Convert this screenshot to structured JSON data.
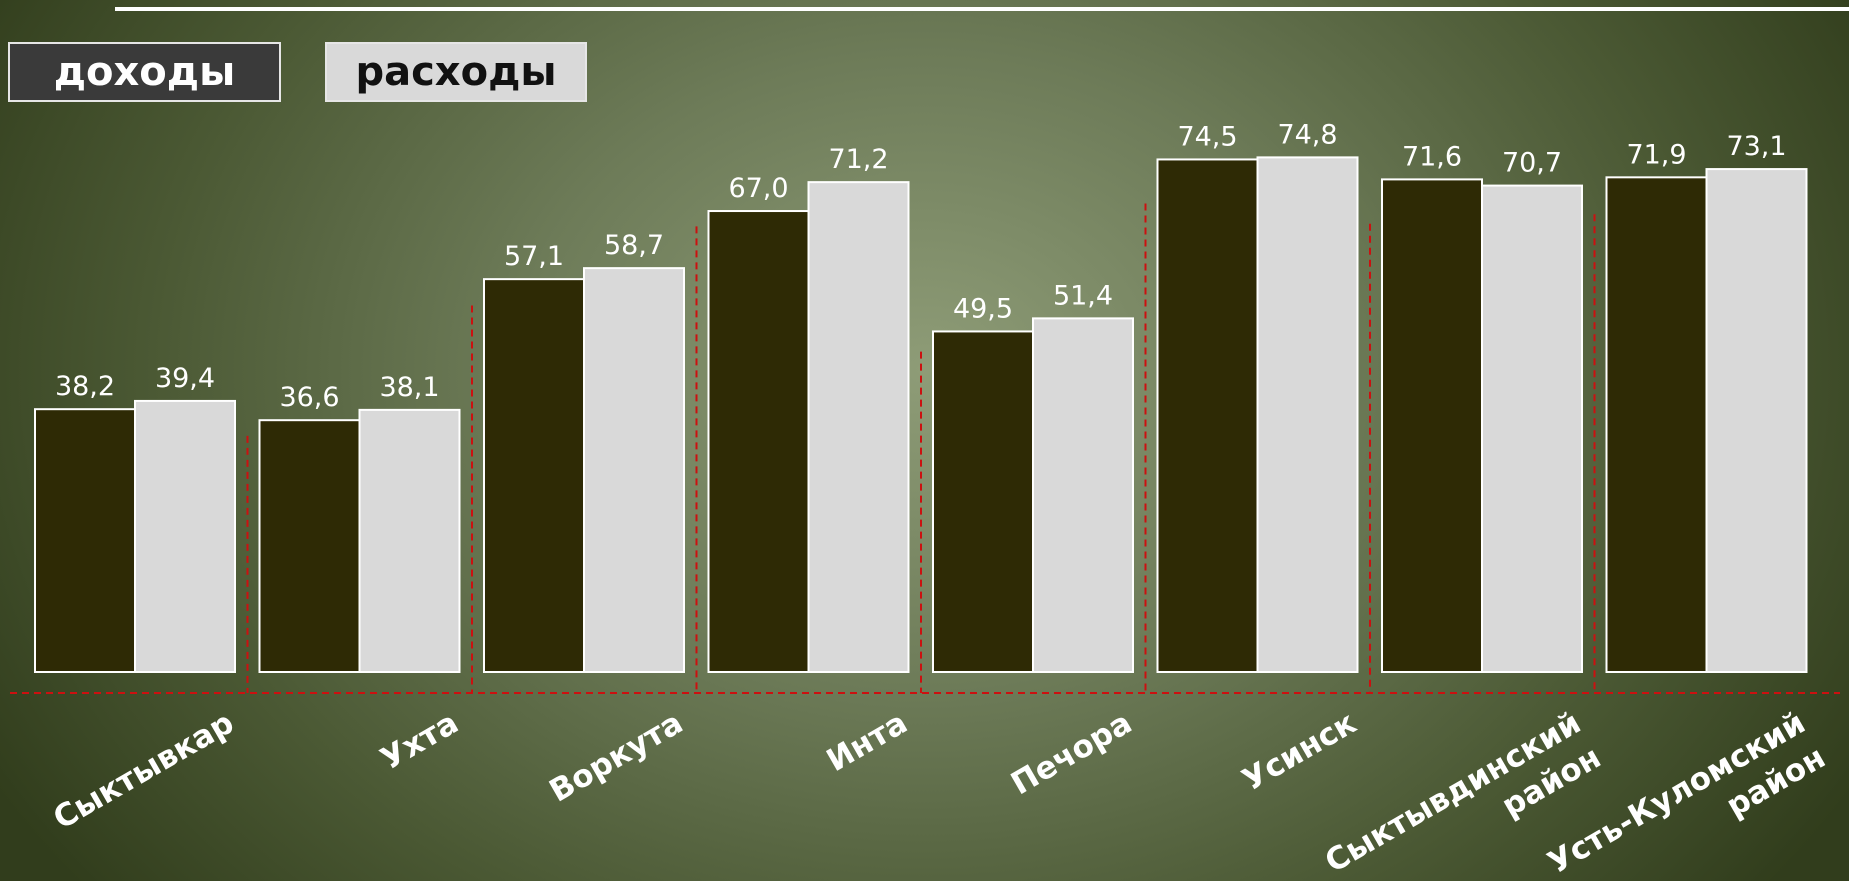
{
  "chart_data": {
    "type": "bar",
    "categories": [
      [
        "Сыктывкар"
      ],
      [
        "Ухта"
      ],
      [
        "Воркута"
      ],
      [
        "Инта"
      ],
      [
        "Печора"
      ],
      [
        "Усинск"
      ],
      [
        "Сыктывдинский",
        "район"
      ],
      [
        "Усть-Куломский",
        "район"
      ]
    ],
    "series": [
      {
        "name": "доходы",
        "values": [
          38.2,
          36.6,
          57.1,
          67.0,
          49.5,
          74.5,
          71.6,
          71.9
        ],
        "labels": [
          "38,2",
          "36,6",
          "57,1",
          "67,0",
          "49,5",
          "74,5",
          "71,6",
          "71,9"
        ]
      },
      {
        "name": "расходы",
        "values": [
          39.4,
          38.1,
          58.7,
          71.2,
          51.4,
          74.8,
          70.7,
          73.1
        ],
        "labels": [
          "39,4",
          "38,1",
          "58,7",
          "71,2",
          "51,4",
          "74,8",
          "70,7",
          "73,1"
        ]
      }
    ],
    "ylim": [
      0,
      80
    ],
    "grid": false,
    "legend_position": "top-left",
    "colors": {
      "income": "#2e2a05",
      "expense": "#d9d9d9",
      "bar_border": "#ffffff",
      "separator": "#cc1010",
      "top_rule": "#ffffff"
    }
  }
}
